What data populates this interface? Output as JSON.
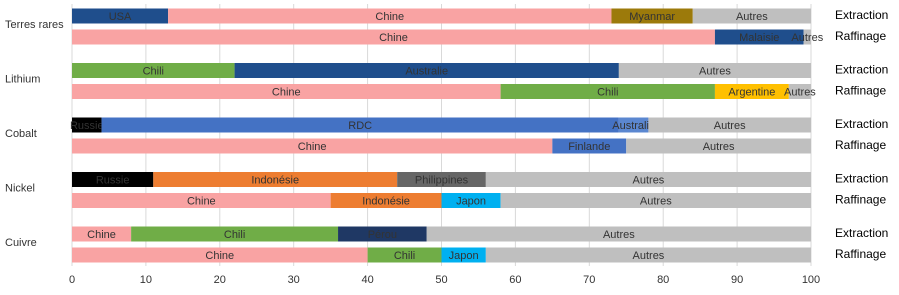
{
  "chart_data": {
    "type": "stacked-hbar",
    "xlim": [
      0,
      100
    ],
    "xticks": [
      0,
      10,
      20,
      30,
      40,
      50,
      60,
      70,
      80,
      90,
      100
    ],
    "grid": true,
    "groups": [
      {
        "name": "Terres rares",
        "rows": [
          {
            "label": "Extraction",
            "segments": [
              {
                "name": "USA",
                "value": 13,
                "color": "#1f4e8c"
              },
              {
                "name": "Chine",
                "value": 60,
                "color": "#f9a3a3"
              },
              {
                "name": "Myanmar",
                "value": 11,
                "color": "#9c7a0b"
              },
              {
                "name": "Autres",
                "value": 16,
                "color": "#bfbfbf"
              }
            ]
          },
          {
            "label": "Raffinage",
            "segments": [
              {
                "name": "Chine",
                "value": 87,
                "color": "#f9a3a3"
              },
              {
                "name": "Malaisie",
                "value": 12,
                "color": "#1f4e8c"
              },
              {
                "name": "Autres",
                "value": 1,
                "color": "#bfbfbf"
              }
            ]
          }
        ]
      },
      {
        "name": "Lithium",
        "rows": [
          {
            "label": "Extraction",
            "segments": [
              {
                "name": "Chili",
                "value": 22,
                "color": "#70ad47"
              },
              {
                "name": "Australie",
                "value": 52,
                "color": "#1f4e8c"
              },
              {
                "name": "Autres",
                "value": 26,
                "color": "#bfbfbf"
              }
            ]
          },
          {
            "label": "Raffinage",
            "segments": [
              {
                "name": "Chine",
                "value": 58,
                "color": "#f9a3a3"
              },
              {
                "name": "Chili",
                "value": 29,
                "color": "#70ad47"
              },
              {
                "name": "Argentine",
                "value": 10,
                "color": "#ffc000"
              },
              {
                "name": "Autres",
                "value": 3,
                "color": "#bfbfbf"
              }
            ]
          }
        ]
      },
      {
        "name": "Cobalt",
        "rows": [
          {
            "label": "Extraction",
            "segments": [
              {
                "name": "Russie",
                "value": 4,
                "color": "#000000"
              },
              {
                "name": "RDC",
                "value": 70,
                "color": "#4472c4"
              },
              {
                "name": "Australie",
                "value": 4,
                "color": "#5b87d0"
              },
              {
                "name": "Autres",
                "value": 22,
                "color": "#bfbfbf"
              }
            ]
          },
          {
            "label": "Raffinage",
            "segments": [
              {
                "name": "Chine",
                "value": 65,
                "color": "#f9a3a3"
              },
              {
                "name": "Finlande",
                "value": 10,
                "color": "#4472c4"
              },
              {
                "name": "Autres",
                "value": 25,
                "color": "#bfbfbf"
              }
            ]
          }
        ]
      },
      {
        "name": "Nickel",
        "rows": [
          {
            "label": "Extraction",
            "segments": [
              {
                "name": "Russie",
                "value": 11,
                "color": "#000000"
              },
              {
                "name": "Indonésie",
                "value": 33,
                "color": "#ed7d31"
              },
              {
                "name": "Philippines",
                "value": 12,
                "color": "#666666"
              },
              {
                "name": "Autres",
                "value": 44,
                "color": "#bfbfbf"
              }
            ]
          },
          {
            "label": "Raffinage",
            "segments": [
              {
                "name": "Chine",
                "value": 35,
                "color": "#f9a3a3"
              },
              {
                "name": "Indonésie",
                "value": 15,
                "color": "#ed7d31"
              },
              {
                "name": "Japon",
                "value": 8,
                "color": "#00b0f0"
              },
              {
                "name": "Autres",
                "value": 42,
                "color": "#bfbfbf"
              }
            ]
          }
        ]
      },
      {
        "name": "Cuivre",
        "rows": [
          {
            "label": "Extraction",
            "segments": [
              {
                "name": "Chine",
                "value": 8,
                "color": "#f9a3a3"
              },
              {
                "name": "Chili",
                "value": 28,
                "color": "#70ad47"
              },
              {
                "name": "Pérou",
                "value": 12,
                "color": "#1f3864"
              },
              {
                "name": "Autres",
                "value": 52,
                "color": "#bfbfbf"
              }
            ]
          },
          {
            "label": "Raffinage",
            "segments": [
              {
                "name": "Chine",
                "value": 40,
                "color": "#f9a3a3"
              },
              {
                "name": "Chili",
                "value": 10,
                "color": "#70ad47"
              },
              {
                "name": "Japon",
                "value": 6,
                "color": "#00b0f0"
              },
              {
                "name": "Autres",
                "value": 44,
                "color": "#bfbfbf"
              }
            ]
          }
        ]
      }
    ]
  }
}
